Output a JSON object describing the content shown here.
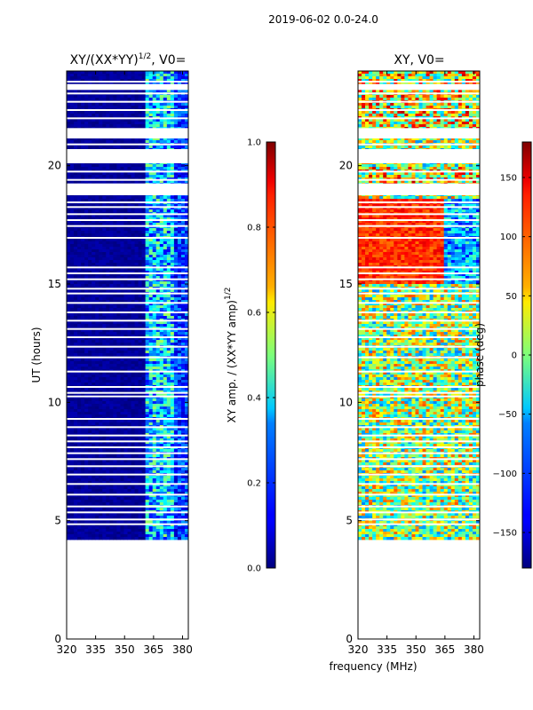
{
  "figure": {
    "suptitle": "2019-06-02 0.0-24.0",
    "shared_xlabel": "frequency (MHz)"
  },
  "chart_data": [
    {
      "type": "heatmap",
      "title_main": "XY/(XX*YY)",
      "title_sup": "1/2",
      "title_tail": ", V0=",
      "xlabel": "",
      "ylabel": "UT (hours)",
      "xlim": [
        320,
        383
      ],
      "ylim": [
        0,
        24
      ],
      "xticks": [
        320,
        335,
        350,
        365,
        380
      ],
      "yticks": [
        0,
        5,
        10,
        15,
        20
      ],
      "data_start_hour": 4.3,
      "data_end_hour": 24.0,
      "bright_band_mhz": [
        360,
        376
      ],
      "colormap": "jet",
      "colorbar": {
        "label_main": "XY amp. / (XX*YY amp)",
        "label_sup": "1/2",
        "range": [
          0.0,
          1.0
        ],
        "ticks": [
          "0.0",
          "0.2",
          "0.4",
          "0.6",
          "0.8",
          "1.0"
        ],
        "tick_values": [
          0.0,
          0.2,
          0.4,
          0.6,
          0.8,
          1.0
        ]
      }
    },
    {
      "type": "heatmap",
      "title": "XY, V0=",
      "xlabel": "frequency (MHz)",
      "ylabel": "",
      "xlim": [
        320,
        383
      ],
      "ylim": [
        0,
        24
      ],
      "xticks": [
        320,
        335,
        350,
        365,
        380
      ],
      "yticks": [
        0,
        5,
        10,
        15,
        20
      ],
      "data_start_hour": 4.3,
      "data_end_hour": 24.0,
      "colormap": "jet",
      "colorbar": {
        "label": "phase (deg)",
        "range": [
          -180,
          180
        ],
        "ticks": [
          "−150",
          "−100",
          "−50",
          "0",
          "50",
          "100",
          "150"
        ],
        "tick_values": [
          -150,
          -100,
          -50,
          0,
          50,
          100,
          150
        ]
      }
    }
  ],
  "gap_hours": [
    4.85,
    5.05,
    5.35,
    5.6,
    6.1,
    6.55,
    6.95,
    7.3,
    7.6,
    7.85,
    8.1,
    8.35,
    8.6,
    8.95,
    9.3,
    10.25,
    10.4,
    10.65,
    11.3,
    11.9,
    12.35,
    12.75,
    13.1,
    13.45,
    13.8,
    14.2,
    14.6,
    14.8,
    15.2,
    15.45,
    15.7,
    16.95,
    17.45,
    17.7,
    17.95,
    18.25,
    18.45,
    18.8,
    19.1,
    19.4,
    19.75,
    20.9,
    21.3,
    21.55,
    22.0,
    22.35,
    22.7,
    23.05,
    23.3,
    23.55
  ],
  "gap_blocks_hours": [
    [
      18.75,
      19.25
    ],
    [
      20.1,
      20.7
    ],
    [
      21.15,
      21.55
    ],
    [
      23.2,
      23.45
    ]
  ]
}
